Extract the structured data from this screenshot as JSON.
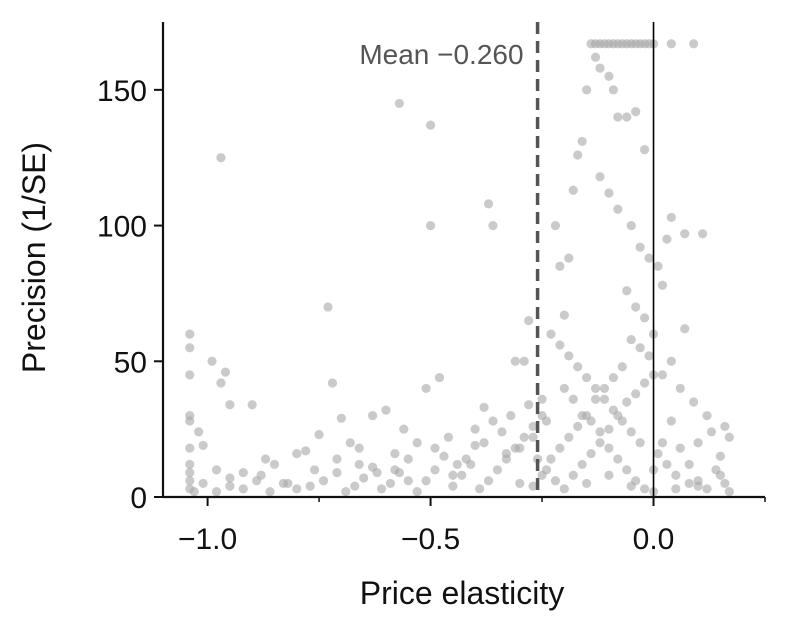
{
  "chart_data": {
    "type": "scatter",
    "title": "",
    "xlabel": "Price elasticity",
    "ylabel": "Precision (1/SE)",
    "xlim": [
      -1.1,
      0.25
    ],
    "ylim": [
      0,
      175
    ],
    "xticks": [
      -1.0,
      -0.5,
      0.0
    ],
    "xtick_labels": [
      "−1.0",
      "−0.5",
      "0.0"
    ],
    "xticks_minor": [
      -0.75,
      -0.25,
      0.25
    ],
    "yticks": [
      0,
      50,
      100,
      150
    ],
    "ytick_labels": [
      "0",
      "50",
      "100",
      "150"
    ],
    "grid": false,
    "reference_lines": [
      {
        "axis": "x",
        "value": 0.0,
        "style": "solid",
        "color": "#000000"
      },
      {
        "axis": "x",
        "value": -0.26,
        "style": "dashed",
        "color": "#555555",
        "label": "Mean −0.260"
      }
    ],
    "point_color": "#a6a6a6",
    "points": [
      [
        -1.04,
        60
      ],
      [
        -1.04,
        55
      ],
      [
        -1.04,
        45
      ],
      [
        -1.04,
        30
      ],
      [
        -1.04,
        28
      ],
      [
        -1.04,
        18
      ],
      [
        -1.04,
        12
      ],
      [
        -1.04,
        9
      ],
      [
        -1.04,
        6
      ],
      [
        -1.04,
        3
      ],
      [
        -1.02,
        24
      ],
      [
        -1.01,
        19
      ],
      [
        -0.99,
        50
      ],
      [
        -0.97,
        125
      ],
      [
        -0.97,
        42
      ],
      [
        -0.96,
        46
      ],
      [
        -0.95,
        34
      ],
      [
        -0.9,
        34
      ],
      [
        -0.98,
        10
      ],
      [
        -0.95,
        7
      ],
      [
        -0.92,
        3
      ],
      [
        -0.88,
        8
      ],
      [
        -0.85,
        12
      ],
      [
        -0.82,
        5
      ],
      [
        -0.78,
        17
      ],
      [
        -0.75,
        23
      ],
      [
        -0.73,
        70
      ],
      [
        -0.72,
        42
      ],
      [
        -0.7,
        29
      ],
      [
        -0.68,
        20
      ],
      [
        -0.66,
        12
      ],
      [
        -0.63,
        30
      ],
      [
        -0.6,
        32
      ],
      [
        -0.58,
        10
      ],
      [
        -0.56,
        25
      ],
      [
        -0.55,
        6
      ],
      [
        -0.57,
        145
      ],
      [
        -0.5,
        137
      ],
      [
        -0.5,
        100
      ],
      [
        -0.51,
        40
      ],
      [
        -0.48,
        44
      ],
      [
        -0.45,
        8
      ],
      [
        -0.42,
        14
      ],
      [
        -0.4,
        19
      ],
      [
        -0.38,
        33
      ],
      [
        -0.37,
        108
      ],
      [
        -0.36,
        100
      ],
      [
        -0.33,
        16
      ],
      [
        -0.31,
        50
      ],
      [
        -0.29,
        50
      ],
      [
        -0.28,
        65
      ],
      [
        -0.3,
        5
      ],
      [
        -0.27,
        22
      ],
      [
        -0.25,
        36
      ],
      [
        -0.24,
        28
      ],
      [
        -0.22,
        100
      ],
      [
        -0.21,
        85
      ],
      [
        -0.2,
        67
      ],
      [
        -0.19,
        88
      ],
      [
        -0.18,
        113
      ],
      [
        -0.17,
        126
      ],
      [
        -0.16,
        131
      ],
      [
        -0.15,
        150
      ],
      [
        -0.14,
        167
      ],
      [
        -0.13,
        167
      ],
      [
        -0.12,
        167
      ],
      [
        -0.11,
        167
      ],
      [
        -0.1,
        167
      ],
      [
        -0.09,
        167
      ],
      [
        -0.08,
        167
      ],
      [
        -0.07,
        167
      ],
      [
        -0.06,
        167
      ],
      [
        -0.05,
        167
      ],
      [
        -0.04,
        167
      ],
      [
        -0.03,
        167
      ],
      [
        -0.02,
        167
      ],
      [
        -0.01,
        167
      ],
      [
        0.0,
        167
      ],
      [
        0.04,
        167
      ],
      [
        0.09,
        167
      ],
      [
        -0.13,
        162
      ],
      [
        -0.12,
        158
      ],
      [
        -0.1,
        155
      ],
      [
        -0.09,
        150
      ],
      [
        -0.08,
        140
      ],
      [
        -0.06,
        140
      ],
      [
        -0.04,
        142
      ],
      [
        -0.02,
        128
      ],
      [
        -0.12,
        118
      ],
      [
        -0.1,
        112
      ],
      [
        -0.08,
        106
      ],
      [
        -0.05,
        100
      ],
      [
        -0.03,
        92
      ],
      [
        -0.01,
        88
      ],
      [
        0.01,
        85
      ],
      [
        0.02,
        78
      ],
      [
        -0.06,
        76
      ],
      [
        -0.04,
        70
      ],
      [
        -0.02,
        66
      ],
      [
        0.0,
        60
      ],
      [
        0.03,
        95
      ],
      [
        0.04,
        103
      ],
      [
        0.07,
        97
      ],
      [
        0.11,
        97
      ],
      [
        0.07,
        62
      ],
      [
        0.04,
        50
      ],
      [
        0.02,
        45
      ],
      [
        0.06,
        40
      ],
      [
        0.09,
        35
      ],
      [
        0.12,
        30
      ],
      [
        0.1,
        20
      ],
      [
        0.13,
        24
      ],
      [
        0.15,
        15
      ],
      [
        0.16,
        26
      ],
      [
        0.17,
        22
      ],
      [
        0.14,
        10
      ],
      [
        0.16,
        5
      ],
      [
        0.17,
        2
      ],
      [
        0.12,
        3
      ],
      [
        0.08,
        5
      ],
      [
        0.05,
        8
      ],
      [
        0.03,
        12
      ],
      [
        0.01,
        16
      ],
      [
        -0.03,
        20
      ],
      [
        -0.05,
        24
      ],
      [
        -0.07,
        28
      ],
      [
        -0.09,
        32
      ],
      [
        -0.11,
        36
      ],
      [
        -0.13,
        40
      ],
      [
        -0.15,
        44
      ],
      [
        -0.17,
        48
      ],
      [
        -0.19,
        52
      ],
      [
        -0.21,
        56
      ],
      [
        -0.23,
        60
      ],
      [
        -0.25,
        30
      ],
      [
        -0.27,
        26
      ],
      [
        -0.29,
        22
      ],
      [
        -0.31,
        18
      ],
      [
        -0.33,
        14
      ],
      [
        -0.35,
        10
      ],
      [
        -0.37,
        6
      ],
      [
        -0.39,
        3
      ],
      [
        -0.41,
        12
      ],
      [
        -0.43,
        8
      ],
      [
        -0.45,
        4
      ],
      [
        -0.47,
        15
      ],
      [
        -0.49,
        10
      ],
      [
        -0.51,
        6
      ],
      [
        -0.53,
        2
      ],
      [
        -0.55,
        14
      ],
      [
        -0.57,
        9
      ],
      [
        -0.59,
        5
      ],
      [
        -0.61,
        3
      ],
      [
        -0.63,
        11
      ],
      [
        -0.65,
        7
      ],
      [
        -0.67,
        4
      ],
      [
        -0.69,
        2
      ],
      [
        -0.71,
        9
      ],
      [
        -0.74,
        6
      ],
      [
        -0.77,
        4
      ],
      [
        -0.8,
        3
      ],
      [
        -0.83,
        5
      ],
      [
        -0.86,
        2
      ],
      [
        -0.89,
        6
      ],
      [
        -0.92,
        9
      ],
      [
        -0.95,
        4
      ],
      [
        -0.98,
        2
      ],
      [
        -1.01,
        5
      ],
      [
        -1.03,
        2
      ],
      [
        -0.87,
        14
      ],
      [
        -0.8,
        16
      ],
      [
        -0.76,
        10
      ],
      [
        -0.71,
        14
      ],
      [
        -0.66,
        18
      ],
      [
        -0.62,
        9
      ],
      [
        -0.58,
        16
      ],
      [
        -0.53,
        20
      ],
      [
        -0.49,
        18
      ],
      [
        -0.46,
        22
      ],
      [
        -0.44,
        12
      ],
      [
        -0.4,
        25
      ],
      [
        -0.38,
        20
      ],
      [
        -0.36,
        28
      ],
      [
        -0.34,
        24
      ],
      [
        -0.32,
        30
      ],
      [
        -0.3,
        18
      ],
      [
        -0.28,
        34
      ],
      [
        -0.26,
        14
      ],
      [
        -0.24,
        10
      ],
      [
        -0.22,
        6
      ],
      [
        -0.2,
        3
      ],
      [
        -0.18,
        8
      ],
      [
        -0.16,
        12
      ],
      [
        -0.14,
        16
      ],
      [
        -0.12,
        20
      ],
      [
        -0.1,
        25
      ],
      [
        -0.08,
        30
      ],
      [
        -0.06,
        35
      ],
      [
        -0.04,
        38
      ],
      [
        -0.02,
        42
      ],
      [
        0.0,
        45
      ],
      [
        -0.01,
        52
      ],
      [
        -0.03,
        55
      ],
      [
        -0.05,
        58
      ],
      [
        -0.07,
        48
      ],
      [
        -0.09,
        44
      ],
      [
        -0.11,
        40
      ],
      [
        -0.13,
        36
      ],
      [
        -0.15,
        30
      ],
      [
        -0.17,
        26
      ],
      [
        -0.19,
        22
      ],
      [
        -0.21,
        18
      ],
      [
        -0.23,
        14
      ],
      [
        -0.25,
        8
      ],
      [
        -0.27,
        4
      ],
      [
        -0.15,
        5
      ],
      [
        -0.1,
        8
      ],
      [
        -0.05,
        4
      ],
      [
        0.0,
        2
      ],
      [
        0.05,
        3
      ],
      [
        0.1,
        6
      ],
      [
        0.15,
        8
      ],
      [
        -0.2,
        40
      ],
      [
        -0.18,
        36
      ],
      [
        -0.16,
        30
      ],
      [
        -0.14,
        28
      ],
      [
        -0.12,
        24
      ],
      [
        -0.1,
        18
      ],
      [
        -0.08,
        14
      ],
      [
        -0.06,
        10
      ],
      [
        -0.04,
        6
      ],
      [
        -0.02,
        3
      ],
      [
        0.0,
        10
      ],
      [
        0.02,
        20
      ],
      [
        0.04,
        28
      ],
      [
        0.06,
        18
      ],
      [
        0.08,
        12
      ],
      [
        0.1,
        4
      ]
    ]
  }
}
